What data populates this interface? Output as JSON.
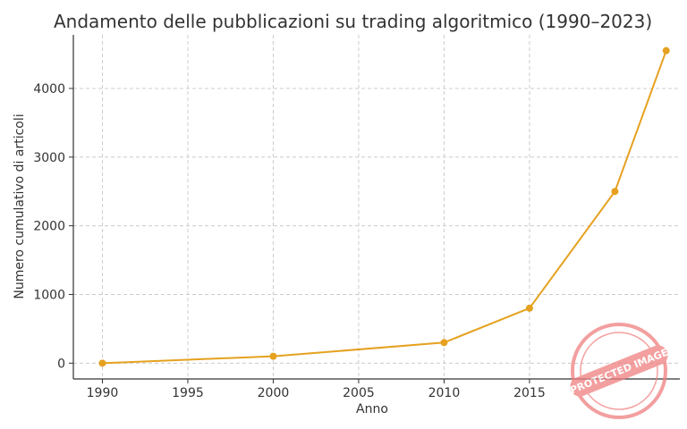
{
  "chart_data": {
    "type": "line",
    "title": "Andamento delle pubblicazioni su trading algoritmico (1990–2023)",
    "xlabel": "Anno",
    "ylabel": "Numero cumulativo di articoli",
    "x": [
      1990,
      2000,
      2010,
      2015,
      2020,
      2023
    ],
    "series": [
      {
        "values": [
          0,
          100,
          300,
          800,
          2500,
          4550
        ]
      }
    ],
    "xlim": [
      1988.3,
      2023.8
    ],
    "ylim": [
      -230,
      4780
    ],
    "xticks": [
      1990,
      1995,
      2000,
      2005,
      2010,
      2015
    ],
    "yticks": [
      0,
      1000,
      2000,
      3000,
      4000
    ],
    "grid": true,
    "line_color": "#e5a11f"
  },
  "watermark": {
    "text": "PROTECTED IMAGE",
    "color": "#f08080"
  }
}
